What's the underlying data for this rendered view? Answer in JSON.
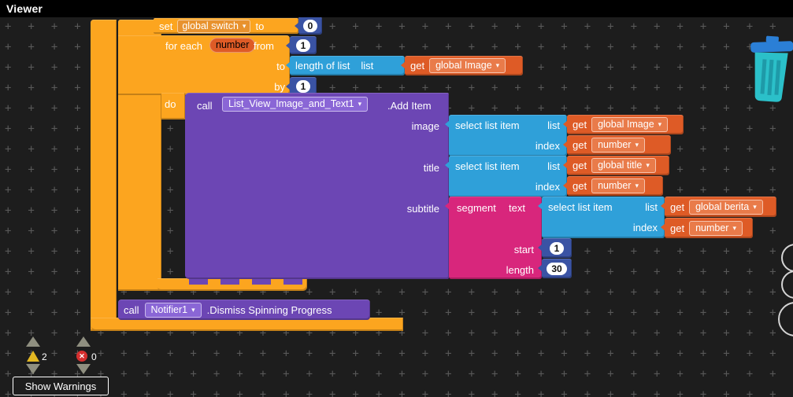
{
  "header": {
    "title": "Viewer"
  },
  "icons": {
    "dropdown": "▾",
    "error_x": "✕"
  },
  "palette": {
    "workspace_bg": "#1d1d1d",
    "control_orange": "#FCA51F",
    "control_chip": "#E8922E",
    "variable_orange": "#DE5B26",
    "variable_chip": "#E97B4A",
    "math_blue": "#3A53A4",
    "list_cyan": "#2FA0D9",
    "procedure_purple": "#6C46B4",
    "procedure_chip": "#8A66D6",
    "text_pink": "#D8267C"
  },
  "workspace": {
    "set_block": {
      "keyword": "set",
      "variable": "global switch",
      "to": "to",
      "value": "0"
    },
    "for_each": {
      "keyword": "for each",
      "var_name": "number",
      "from": "from",
      "from_value": "1",
      "to": "to",
      "by": "by",
      "by_value": "1",
      "do": "do"
    },
    "length_of_list": {
      "label": "length of list",
      "arg": "list"
    },
    "select_item": {
      "label": "select list item",
      "list_arg": "list",
      "index_arg": "index"
    },
    "get_keyword": "get",
    "getters": {
      "loop_to": "global Image",
      "image_list": "global Image",
      "image_index": "number",
      "title_list": "global title",
      "title_index": "number",
      "subtitle_list": "global berita",
      "subtitle_index": "number"
    },
    "add_item_call": {
      "keyword": "call",
      "procedure": "List_View_Image_and_Text1",
      "method": ".Add Item",
      "arg_image": "image",
      "arg_title": "title",
      "arg_subtitle": "subtitle"
    },
    "segment_block": {
      "keyword": "segment",
      "arg_text": "text",
      "arg_start": "start",
      "start_value": "1",
      "arg_length": "length",
      "length_value": "30"
    },
    "notifier_call": {
      "keyword": "call",
      "component": "Notifier1",
      "method": ".Dismiss Spinning Progress"
    }
  },
  "status_bar": {
    "warning_count": "2",
    "error_count": "0",
    "show_warnings_label": "Show Warnings"
  }
}
